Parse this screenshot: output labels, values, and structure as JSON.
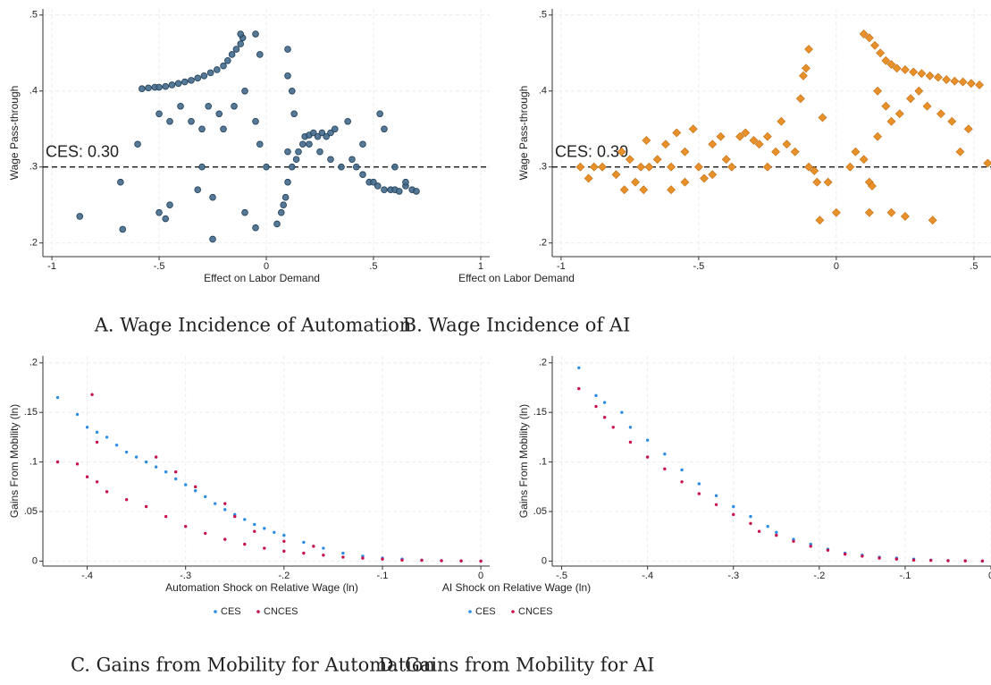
{
  "chart_data": [
    {
      "type": "scatter",
      "title": "A. Wage Incidence of Automation",
      "xlabel": "Effect on Labor Demand",
      "ylabel": "Wage Pass-through",
      "xlim": [
        -1.042,
        1.042
      ],
      "ylim": [
        0.182,
        0.508
      ],
      "xticks": [
        -1,
        {
          "value": -0.5,
          "label": "-.5"
        },
        0,
        {
          "value": 0.5,
          "label": ".5"
        },
        1
      ],
      "yticks": [
        {
          "value": 0.2,
          "label": ".2"
        },
        {
          "value": 0.3,
          "label": ".3"
        },
        {
          "value": 0.4,
          "label": ".4"
        },
        {
          "value": 0.5,
          "label": ".5"
        }
      ],
      "grid": true,
      "hline": {
        "value": 0.3,
        "label": "CES: 0.30"
      },
      "series": [
        {
          "color": "#41698a",
          "marker": "circle",
          "x": [
            -0.58,
            -0.55,
            -0.52,
            -0.5,
            -0.47,
            -0.44,
            -0.41,
            -0.38,
            -0.35,
            -0.32,
            -0.29,
            -0.26,
            -0.23,
            -0.2,
            -0.18,
            -0.16,
            -0.14,
            -0.12,
            -0.11,
            -0.12,
            -0.05,
            -0.03,
            -0.6,
            -0.5,
            -0.45,
            -0.4,
            -0.35,
            -0.3,
            -0.27,
            -0.22,
            -0.2,
            -0.15,
            -0.1,
            -0.05,
            -0.03,
            0.0,
            0.1,
            0.1,
            0.12,
            0.13,
            -0.87,
            -0.68,
            -0.67,
            -0.5,
            -0.47,
            -0.45,
            -0.32,
            -0.3,
            -0.25,
            -0.25,
            -0.1,
            -0.05,
            0.05,
            0.07,
            0.08,
            0.09,
            0.1,
            0.1,
            0.12,
            0.14,
            0.15,
            0.17,
            0.18,
            0.2,
            0.22,
            0.24,
            0.26,
            0.28,
            0.3,
            0.32,
            0.2,
            0.25,
            0.3,
            0.35,
            0.38,
            0.4,
            0.42,
            0.45,
            0.48,
            0.5,
            0.52,
            0.55,
            0.58,
            0.6,
            0.62,
            0.65,
            0.68,
            0.7,
            0.53,
            0.55,
            0.45,
            0.6,
            0.65
          ],
          "values": [
            0.403,
            0.404,
            0.405,
            0.405,
            0.406,
            0.408,
            0.41,
            0.412,
            0.414,
            0.417,
            0.42,
            0.424,
            0.428,
            0.433,
            0.44,
            0.448,
            0.455,
            0.462,
            0.47,
            0.475,
            0.475,
            0.448,
            0.33,
            0.37,
            0.36,
            0.38,
            0.36,
            0.35,
            0.38,
            0.37,
            0.35,
            0.38,
            0.4,
            0.36,
            0.33,
            0.3,
            0.455,
            0.42,
            0.4,
            0.37,
            0.235,
            0.28,
            0.218,
            0.24,
            0.232,
            0.25,
            0.27,
            0.3,
            0.205,
            0.26,
            0.24,
            0.22,
            0.225,
            0.24,
            0.25,
            0.26,
            0.28,
            0.32,
            0.3,
            0.31,
            0.32,
            0.33,
            0.34,
            0.342,
            0.345,
            0.34,
            0.345,
            0.34,
            0.345,
            0.35,
            0.33,
            0.32,
            0.31,
            0.3,
            0.36,
            0.31,
            0.3,
            0.29,
            0.28,
            0.28,
            0.275,
            0.27,
            0.27,
            0.27,
            0.268,
            0.275,
            0.27,
            0.268,
            0.37,
            0.35,
            0.33,
            0.3,
            0.28
          ]
        }
      ]
    },
    {
      "type": "scatter",
      "title": "B. Wage Incidence of AI",
      "xlabel": "Effect on Labor Demand",
      "ylabel": "Wage Pass-through",
      "xlim": [
        -1.032,
        0.562
      ],
      "ylim": [
        0.182,
        0.508
      ],
      "xticks": [
        -1,
        {
          "value": -0.5,
          "label": "-.5"
        },
        0,
        {
          "value": 0.5,
          "label": ".5"
        }
      ],
      "yticks": [
        {
          "value": 0.2,
          "label": ".2"
        },
        {
          "value": 0.3,
          "label": ".3"
        },
        {
          "value": 0.4,
          "label": ".4"
        },
        {
          "value": 0.5,
          "label": ".5"
        }
      ],
      "grid": true,
      "hline": {
        "value": 0.3,
        "label": "CES: 0.30"
      },
      "series": [
        {
          "color": "#e8912a",
          "marker": "diamond",
          "x": [
            -0.93,
            -0.9,
            -0.88,
            -0.85,
            -0.8,
            -0.78,
            -0.75,
            -0.73,
            -0.71,
            -0.7,
            -0.69,
            -0.65,
            -0.62,
            -0.6,
            -0.58,
            -0.55,
            -0.52,
            -0.5,
            -0.48,
            -0.45,
            -0.42,
            -0.4,
            -0.38,
            -0.35,
            -0.33,
            -0.3,
            -0.28,
            -0.25,
            -0.22,
            -0.2,
            -0.18,
            -0.15,
            -0.13,
            -0.12,
            -0.11,
            -0.1,
            -0.1,
            -0.08,
            -0.07,
            -0.06,
            -0.05,
            -0.03,
            -0.6,
            -0.55,
            -0.45,
            -0.25,
            -0.77,
            -0.68,
            0.0,
            0.05,
            0.1,
            0.12,
            0.13,
            0.07,
            0.1,
            0.12,
            0.14,
            0.16,
            0.18,
            0.2,
            0.22,
            0.25,
            0.28,
            0.31,
            0.34,
            0.37,
            0.4,
            0.43,
            0.46,
            0.49,
            0.52,
            0.15,
            0.18,
            0.2,
            0.23,
            0.27,
            0.3,
            0.33,
            0.38,
            0.42,
            0.45,
            0.48,
            0.12,
            0.2,
            0.25,
            0.35,
            0.15,
            0.55
          ],
          "values": [
            0.3,
            0.285,
            0.3,
            0.3,
            0.29,
            0.32,
            0.31,
            0.28,
            0.3,
            0.27,
            0.335,
            0.31,
            0.33,
            0.3,
            0.345,
            0.32,
            0.35,
            0.3,
            0.285,
            0.33,
            0.34,
            0.31,
            0.3,
            0.34,
            0.345,
            0.335,
            0.33,
            0.34,
            0.32,
            0.36,
            0.33,
            0.32,
            0.39,
            0.42,
            0.43,
            0.455,
            0.3,
            0.295,
            0.28,
            0.23,
            0.365,
            0.28,
            0.27,
            0.28,
            0.29,
            0.3,
            0.27,
            0.3,
            0.24,
            0.3,
            0.31,
            0.28,
            0.275,
            0.32,
            0.475,
            0.47,
            0.46,
            0.45,
            0.44,
            0.435,
            0.43,
            0.428,
            0.425,
            0.423,
            0.42,
            0.418,
            0.415,
            0.413,
            0.412,
            0.41,
            0.408,
            0.4,
            0.38,
            0.36,
            0.37,
            0.39,
            0.4,
            0.38,
            0.37,
            0.36,
            0.32,
            0.35,
            0.24,
            0.24,
            0.235,
            0.23,
            0.34,
            0.305
          ]
        }
      ]
    },
    {
      "type": "scatter",
      "title": "C. Gains from Mobility for Automation",
      "xlabel": "Automation Shock on Relative Wage (ln)",
      "ylabel": "Gains From Mobility (ln)",
      "xlim": [
        -0.445,
        0.009
      ],
      "ylim": [
        -0.005,
        0.207
      ],
      "xticks": [
        {
          "value": -0.4,
          "label": "-.4"
        },
        {
          "value": -0.3,
          "label": "-.3"
        },
        {
          "value": -0.2,
          "label": "-.2"
        },
        {
          "value": -0.1,
          "label": "-.1"
        },
        0
      ],
      "yticks": [
        0,
        {
          "value": 0.05,
          "label": ".05"
        },
        {
          "value": 0.1,
          "label": ".1"
        },
        {
          "value": 0.15,
          "label": ".15"
        },
        {
          "value": 0.2,
          "label": ".2"
        }
      ],
      "grid": true,
      "legend": "bottom",
      "series": [
        {
          "name": "CES",
          "color": "#2b8ce6",
          "marker": "dot",
          "x": [
            -0.43,
            -0.41,
            -0.4,
            -0.39,
            -0.38,
            -0.37,
            -0.36,
            -0.35,
            -0.34,
            -0.33,
            -0.32,
            -0.31,
            -0.3,
            -0.29,
            -0.28,
            -0.27,
            -0.26,
            -0.25,
            -0.24,
            -0.23,
            -0.22,
            -0.21,
            -0.2,
            -0.18,
            -0.16,
            -0.14,
            -0.12,
            -0.1,
            -0.08,
            -0.06,
            -0.04,
            -0.02,
            0
          ],
          "values": [
            0.165,
            0.148,
            0.135,
            0.13,
            0.125,
            0.117,
            0.11,
            0.105,
            0.1,
            0.095,
            0.09,
            0.083,
            0.077,
            0.071,
            0.065,
            0.058,
            0.052,
            0.047,
            0.042,
            0.037,
            0.033,
            0.029,
            0.026,
            0.019,
            0.013,
            0.008,
            0.005,
            0.003,
            0.002,
            0.001,
            0.0005,
            0.0002,
            0
          ]
        },
        {
          "name": "CNCES",
          "color": "#c8104c",
          "marker": "dot",
          "x": [
            -0.43,
            -0.41,
            -0.4,
            -0.39,
            -0.38,
            -0.36,
            -0.34,
            -0.32,
            -0.3,
            -0.28,
            -0.26,
            -0.24,
            -0.22,
            -0.2,
            -0.18,
            -0.16,
            -0.14,
            -0.12,
            -0.1,
            -0.08,
            -0.06,
            -0.04,
            -0.02,
            0,
            -0.395,
            -0.39,
            -0.33,
            -0.31,
            -0.29,
            -0.26,
            -0.25,
            -0.23,
            -0.2,
            -0.17
          ],
          "values": [
            0.1,
            0.098,
            0.085,
            0.08,
            0.07,
            0.062,
            0.055,
            0.045,
            0.035,
            0.028,
            0.022,
            0.017,
            0.013,
            0.01,
            0.008,
            0.006,
            0.004,
            0.003,
            0.002,
            0.001,
            0.0008,
            0.0004,
            0.0002,
            0,
            0.168,
            0.12,
            0.105,
            0.09,
            0.075,
            0.058,
            0.045,
            0.03,
            0.02,
            0.015
          ]
        }
      ]
    },
    {
      "type": "scatter",
      "title": "D. Gains from Mobility for AI",
      "xlabel": "AI Shock on Relative Wage (ln)",
      "ylabel": "Gains From Mobility (ln)",
      "xlim": [
        -0.511,
        0.0
      ],
      "ylim": [
        -0.005,
        0.207
      ],
      "xticks": [
        {
          "value": -0.5,
          "label": "-.5"
        },
        {
          "value": -0.4,
          "label": "-.4"
        },
        {
          "value": -0.3,
          "label": "-.3"
        },
        {
          "value": -0.2,
          "label": "-.2"
        },
        {
          "value": -0.1,
          "label": "-.1"
        },
        0
      ],
      "yticks": [
        0,
        {
          "value": 0.05,
          "label": ".05"
        },
        {
          "value": 0.1,
          "label": ".1"
        },
        {
          "value": 0.15,
          "label": ".15"
        },
        {
          "value": 0.2,
          "label": ".2"
        }
      ],
      "grid": true,
      "legend": "bottom",
      "series": [
        {
          "name": "CES",
          "color": "#2b8ce6",
          "marker": "dot",
          "x": [
            -0.48,
            -0.46,
            -0.45,
            -0.43,
            -0.42,
            -0.4,
            -0.38,
            -0.36,
            -0.34,
            -0.32,
            -0.3,
            -0.28,
            -0.26,
            -0.25,
            -0.23,
            -0.21,
            -0.19,
            -0.17,
            -0.15,
            -0.13,
            -0.11,
            -0.09,
            -0.07,
            -0.05,
            -0.03,
            -0.01
          ],
          "values": [
            0.195,
            0.167,
            0.16,
            0.15,
            0.135,
            0.122,
            0.108,
            0.092,
            0.078,
            0.066,
            0.055,
            0.045,
            0.035,
            0.029,
            0.022,
            0.017,
            0.012,
            0.008,
            0.006,
            0.004,
            0.003,
            0.002,
            0.001,
            0.0006,
            0.0003,
            0.0001
          ]
        },
        {
          "name": "CNCES",
          "color": "#c8104c",
          "marker": "dot",
          "x": [
            -0.48,
            -0.46,
            -0.45,
            -0.44,
            -0.42,
            -0.4,
            -0.38,
            -0.36,
            -0.34,
            -0.32,
            -0.3,
            -0.28,
            -0.27,
            -0.25,
            -0.23,
            -0.21,
            -0.19,
            -0.17,
            -0.15,
            -0.13,
            -0.11,
            -0.09,
            -0.07,
            -0.05,
            -0.03,
            -0.01
          ],
          "values": [
            0.174,
            0.156,
            0.145,
            0.135,
            0.12,
            0.105,
            0.093,
            0.08,
            0.068,
            0.057,
            0.047,
            0.038,
            0.03,
            0.026,
            0.02,
            0.015,
            0.011,
            0.007,
            0.005,
            0.003,
            0.002,
            0.001,
            0.0007,
            0.0004,
            0.0002,
            0.0001
          ]
        }
      ]
    }
  ]
}
